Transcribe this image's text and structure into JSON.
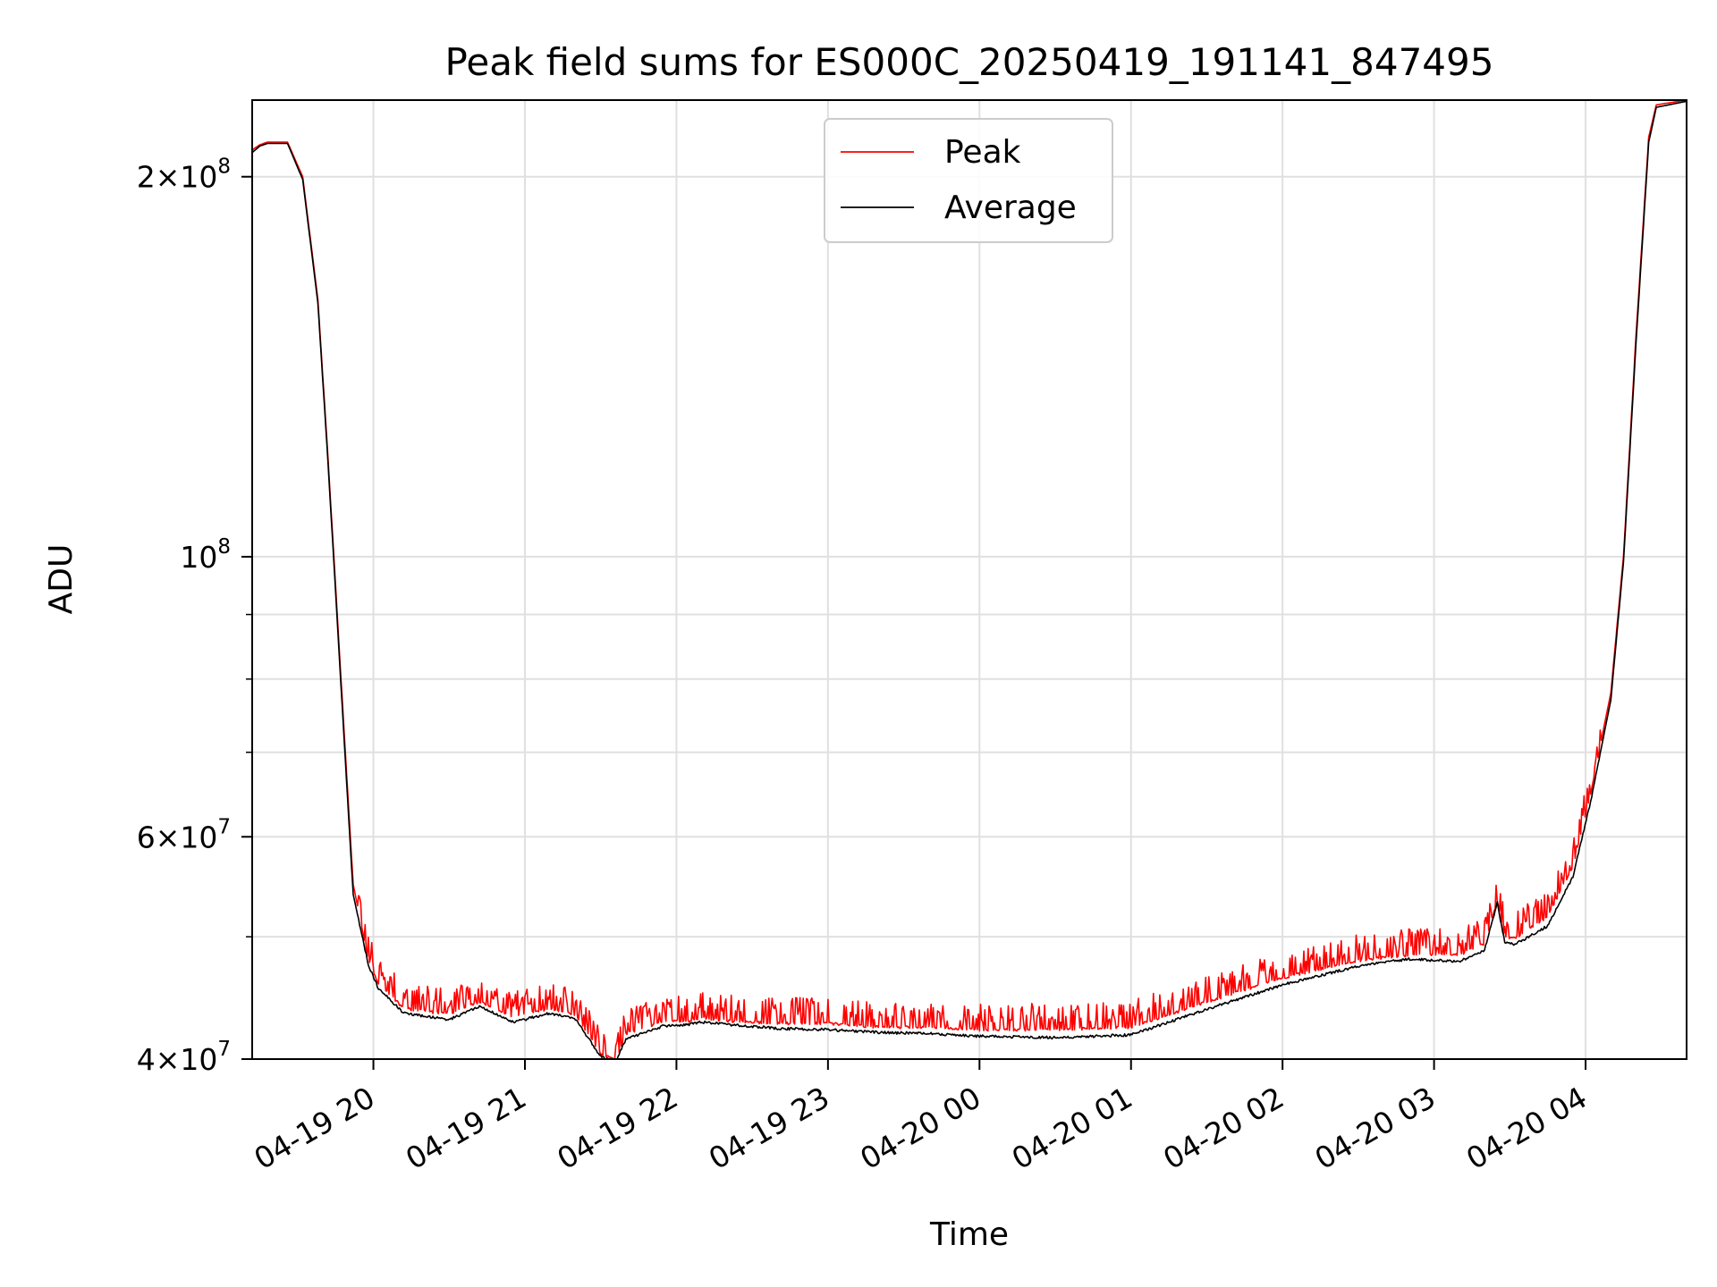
{
  "chart_data": {
    "type": "line",
    "title": "Peak field sums for ES000C_20250419_191141_847495",
    "xlabel": "Time",
    "ylabel": "ADU",
    "yscale": "log",
    "grid": true,
    "legend_position": "upper center",
    "xlim": [
      "2025-04-19 19:12",
      "2025-04-20 04:40"
    ],
    "ylim": [
      40000000,
      230000000
    ],
    "x_ticks": [
      {
        "value": "2025-04-19 20:00",
        "label": "04-19 20"
      },
      {
        "value": "2025-04-19 21:00",
        "label": "04-19 21"
      },
      {
        "value": "2025-04-19 22:00",
        "label": "04-19 22"
      },
      {
        "value": "2025-04-19 23:00",
        "label": "04-19 23"
      },
      {
        "value": "2025-04-20 00:00",
        "label": "04-20 00"
      },
      {
        "value": "2025-04-20 01:00",
        "label": "04-20 01"
      },
      {
        "value": "2025-04-20 02:00",
        "label": "04-20 02"
      },
      {
        "value": "2025-04-20 03:00",
        "label": "04-20 03"
      },
      {
        "value": "2025-04-20 04:00",
        "label": "04-20 04"
      }
    ],
    "y_major_ticks": [
      {
        "value": 40000000,
        "mantissa": "4",
        "exp": "7"
      },
      {
        "value": 60000000,
        "mantissa": "6",
        "exp": "7"
      },
      {
        "value": 100000000,
        "mantissa": "",
        "exp": "8"
      },
      {
        "value": 200000000,
        "mantissa": "2",
        "exp": "8"
      }
    ],
    "y_minor_ticks": [
      50000000,
      70000000,
      80000000,
      90000000
    ],
    "series": [
      {
        "name": "Peak",
        "color": "#ff0000",
        "noisy": true,
        "x": [
          "2025-04-19 19:12",
          "2025-04-19 19:15",
          "2025-04-19 19:18",
          "2025-04-19 19:26",
          "2025-04-19 19:32",
          "2025-04-19 19:38",
          "2025-04-19 19:42",
          "2025-04-19 19:45",
          "2025-04-19 19:48",
          "2025-04-19 19:52",
          "2025-04-19 19:58",
          "2025-04-19 20:02",
          "2025-04-19 20:12",
          "2025-04-19 20:30",
          "2025-04-19 20:42",
          "2025-04-19 20:48",
          "2025-04-19 20:55",
          "2025-04-19 21:00",
          "2025-04-19 21:10",
          "2025-04-19 21:20",
          "2025-04-19 21:30",
          "2025-04-19 21:36",
          "2025-04-19 21:40",
          "2025-04-19 21:48",
          "2025-04-19 21:55",
          "2025-04-19 22:05",
          "2025-04-19 22:10",
          "2025-04-19 22:20",
          "2025-04-19 22:40",
          "2025-04-19 23:00",
          "2025-04-19 23:20",
          "2025-04-19 23:40",
          "2025-04-20 00:00",
          "2025-04-20 00:30",
          "2025-04-20 01:00",
          "2025-04-20 01:30",
          "2025-04-20 02:00",
          "2025-04-20 02:30",
          "2025-04-20 02:50",
          "2025-04-20 03:10",
          "2025-04-20 03:20",
          "2025-04-20 03:25",
          "2025-04-20 03:28",
          "2025-04-20 03:32",
          "2025-04-20 03:45",
          "2025-04-20 03:55",
          "2025-04-20 04:02",
          "2025-04-20 04:10",
          "2025-04-20 04:15",
          "2025-04-20 04:20",
          "2025-04-20 04:25",
          "2025-04-20 04:28",
          "2025-04-20 04:40"
        ],
        "y": [
          210000000,
          212000000,
          213000000,
          213000000,
          200000000,
          160000000,
          120000000,
          95000000,
          75000000,
          55000000,
          48000000,
          46000000,
          44000000,
          43500000,
          44500000,
          44000000,
          43200000,
          43500000,
          44000000,
          43500000,
          40500000,
          40000000,
          42000000,
          42500000,
          43000000,
          43000000,
          43200000,
          43000000,
          42800000,
          42800000,
          42500000,
          42500000,
          42300000,
          42300000,
          42500000,
          44500000,
          46500000,
          48000000,
          48500000,
          48500000,
          49500000,
          53500000,
          50000000,
          50000000,
          52000000,
          57000000,
          65000000,
          78000000,
          100000000,
          150000000,
          215000000,
          228000000,
          230000000
        ]
      },
      {
        "name": "Average",
        "color": "#000000",
        "noisy": false,
        "x": [
          "2025-04-19 19:12",
          "2025-04-19 19:15",
          "2025-04-19 19:18",
          "2025-04-19 19:26",
          "2025-04-19 19:32",
          "2025-04-19 19:38",
          "2025-04-19 19:42",
          "2025-04-19 19:45",
          "2025-04-19 19:48",
          "2025-04-19 19:52",
          "2025-04-19 19:58",
          "2025-04-19 20:02",
          "2025-04-19 20:12",
          "2025-04-19 20:30",
          "2025-04-19 20:42",
          "2025-04-19 20:48",
          "2025-04-19 20:55",
          "2025-04-19 21:00",
          "2025-04-19 21:10",
          "2025-04-19 21:20",
          "2025-04-19 21:30",
          "2025-04-19 21:36",
          "2025-04-19 21:40",
          "2025-04-19 21:48",
          "2025-04-19 21:55",
          "2025-04-19 22:05",
          "2025-04-19 22:10",
          "2025-04-19 22:20",
          "2025-04-19 22:40",
          "2025-04-19 23:00",
          "2025-04-19 23:20",
          "2025-04-19 23:40",
          "2025-04-20 00:00",
          "2025-04-20 00:30",
          "2025-04-20 01:00",
          "2025-04-20 01:30",
          "2025-04-20 02:00",
          "2025-04-20 02:30",
          "2025-04-20 02:50",
          "2025-04-20 03:10",
          "2025-04-20 03:20",
          "2025-04-20 03:25",
          "2025-04-20 03:28",
          "2025-04-20 03:32",
          "2025-04-20 03:45",
          "2025-04-20 03:55",
          "2025-04-20 04:02",
          "2025-04-20 04:10",
          "2025-04-20 04:15",
          "2025-04-20 04:20",
          "2025-04-20 04:25",
          "2025-04-20 04:28",
          "2025-04-20 04:40"
        ],
        "y": [
          209000000,
          211500000,
          212500000,
          212500000,
          199000000,
          159000000,
          119000000,
          94000000,
          74000000,
          54000000,
          47500000,
          45500000,
          43500000,
          43000000,
          44000000,
          43500000,
          42800000,
          43000000,
          43500000,
          43000000,
          40200000,
          39800000,
          41500000,
          42000000,
          42500000,
          42600000,
          42800000,
          42600000,
          42300000,
          42200000,
          42000000,
          41900000,
          41700000,
          41600000,
          41800000,
          43800000,
          45800000,
          47400000,
          48000000,
          47800000,
          48800000,
          53200000,
          49500000,
          49300000,
          51000000,
          55800000,
          64000000,
          77000000,
          99000000,
          148000000,
          213000000,
          227000000,
          229500000
        ]
      }
    ]
  }
}
